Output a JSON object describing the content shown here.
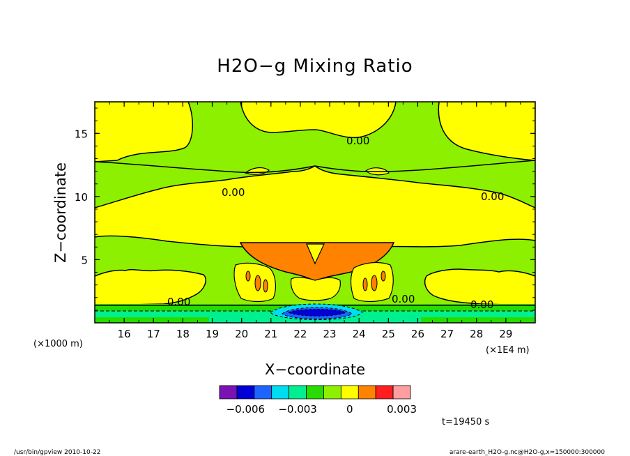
{
  "chart_data": {
    "type": "contour",
    "title": "H2O−g Mixing Ratio",
    "xlabel": "X−coordinate",
    "ylabel": "Z−coordinate",
    "x_unit_label": "(×1E4 m)",
    "y_unit_label": "(×1000 m)",
    "x_ticks": [
      "16",
      "17",
      "18",
      "19",
      "20",
      "21",
      "22",
      "23",
      "24",
      "25",
      "26",
      "27",
      "28",
      "29"
    ],
    "x_tick_values": [
      16,
      17,
      18,
      19,
      20,
      21,
      22,
      23,
      24,
      25,
      26,
      27,
      28,
      29
    ],
    "y_ticks": [
      "5",
      "10",
      "15"
    ],
    "y_tick_values": [
      5,
      10,
      15
    ],
    "xlim": [
      15.0,
      30.0
    ],
    "ylim": [
      0.0,
      17.5
    ],
    "contour_labels": [
      "0.00",
      "0.00",
      "0.00",
      "0.00",
      "0.00",
      "0.00"
    ],
    "colorbar": {
      "colors": [
        "#7a12b4",
        "#0000d6",
        "#1e64ff",
        "#00dcf0",
        "#00f090",
        "#28dc00",
        "#8cf000",
        "#ffff00",
        "#ff8200",
        "#ff1e1e",
        "#ff9ea0"
      ],
      "tick_labels": [
        "−0.006",
        "−0.003",
        "0",
        "0.003"
      ],
      "tick_values": [
        -0.006,
        -0.003,
        0,
        0.003
      ],
      "range": [
        -0.0075,
        0.0035
      ]
    },
    "time_label": "t=19450 s",
    "footer_left": "/usr/bin/gpview  2010-10-22",
    "footer_right": "arare-earth_H2O-g.nc@H2O-g,x=150000:300000"
  }
}
